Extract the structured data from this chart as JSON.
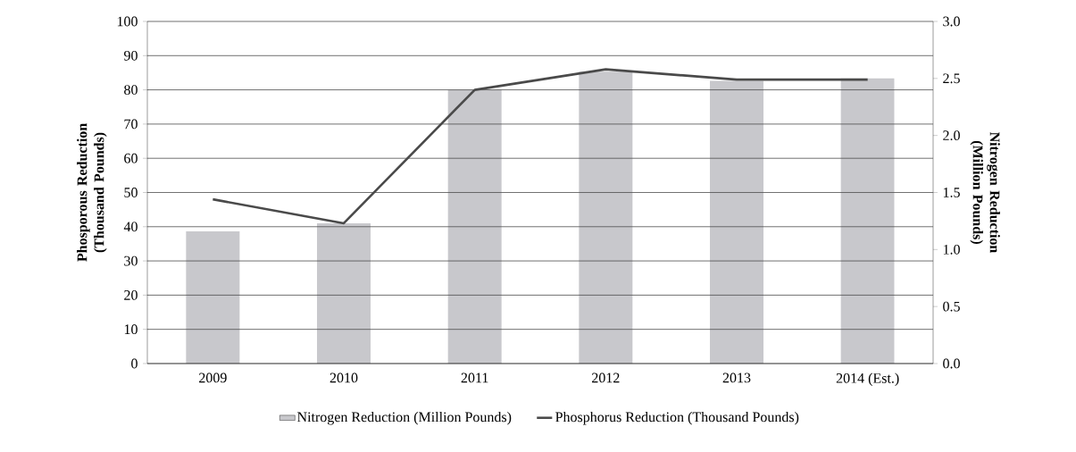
{
  "chart_data": {
    "type": "bar",
    "categories": [
      "2009",
      "2010",
      "2011",
      "2012",
      "2013",
      "2014 (Est.)"
    ],
    "series": [
      {
        "name": "Nitrogen Reduction (Million Pounds)",
        "axis": "y2",
        "color": "#c8c8cc",
        "values": [
          1.16,
          1.23,
          2.4,
          2.56,
          2.48,
          2.5
        ]
      },
      {
        "name": "Phosphorus Reduction (Thousand Pounds)",
        "type": "line",
        "color": "#4a4a4a",
        "values": [
          48,
          41,
          80,
          86,
          83,
          83
        ]
      }
    ],
    "ylabel": "Phosporous Reduction (Thousand Pounds)",
    "y2label": "Nitrogen Reduction (Million Pounds)",
    "ylim": [
      0,
      100
    ],
    "yticks": [
      0,
      10,
      20,
      30,
      40,
      50,
      60,
      70,
      80,
      90,
      100
    ],
    "y2lim": [
      0,
      3
    ],
    "y2ticks": [
      {
        "value": 0,
        "label": "0.0"
      },
      {
        "value": 0.5,
        "label": "0.5"
      },
      {
        "value": 1,
        "label": "1.0"
      },
      {
        "value": 1.5,
        "label": "1.5"
      },
      {
        "value": 2,
        "label": "2.0"
      },
      {
        "value": 2.5,
        "label": "2.5"
      },
      {
        "value": 3,
        "label": "3.0"
      }
    ],
    "grid": "y",
    "legend": "bottom",
    "marker": "none",
    "line_style": "solid"
  }
}
